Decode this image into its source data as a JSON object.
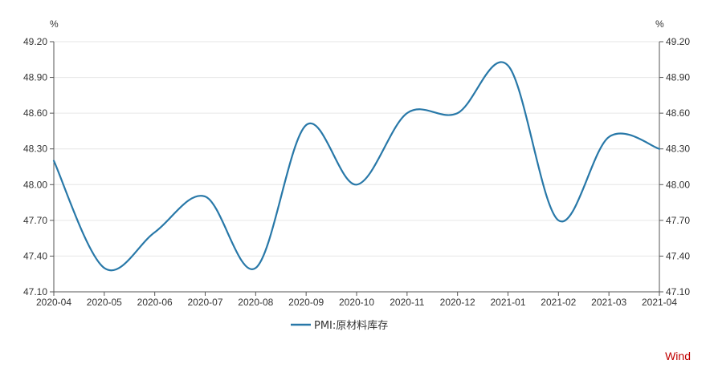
{
  "chart_data": {
    "type": "line",
    "x": [
      "2020-04",
      "2020-05",
      "2020-06",
      "2020-07",
      "2020-08",
      "2020-09",
      "2020-10",
      "2020-11",
      "2020-12",
      "2021-01",
      "2021-02",
      "2021-03",
      "2021-04"
    ],
    "x_tick_labels": [
      "2020-04",
      "2020-05",
      "2020-06",
      "2020-07",
      "2020-08",
      "2020-09",
      "2020-10",
      "2020-11",
      "2020-12",
      "2021-01",
      "2021-02",
      "2021-03",
      "2021-04"
    ],
    "series": [
      {
        "name": "PMI:原材料库存",
        "color": "#2878a8",
        "values": [
          48.2,
          47.3,
          47.6,
          47.9,
          47.3,
          48.5,
          48.0,
          48.6,
          48.6,
          49.0,
          47.7,
          48.4,
          48.3
        ]
      }
    ],
    "y_left": {
      "unit": "%",
      "ylim": [
        47.1,
        49.2
      ],
      "ticks": [
        "47.10",
        "47.40",
        "47.70",
        "48.00",
        "48.30",
        "48.60",
        "48.90",
        "49.20"
      ]
    },
    "y_right": {
      "unit": "%",
      "ylim": [
        47.1,
        49.2
      ],
      "ticks": [
        "47.10",
        "47.40",
        "47.70",
        "48.00",
        "48.30",
        "48.60",
        "48.90",
        "49.20"
      ]
    },
    "grid": "horizontal",
    "legend_position": "bottom-center"
  },
  "source_label": "Wind",
  "colors": {
    "line": "#2878a8",
    "axis": "#555555",
    "grid": "#e6e6e6",
    "source": "#c00000"
  }
}
